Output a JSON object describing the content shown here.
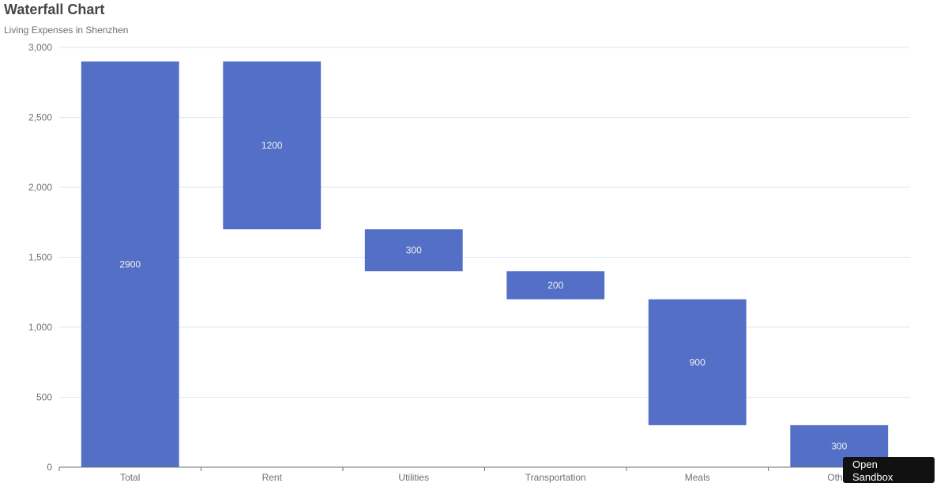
{
  "colors": {
    "bar": "#5470c6",
    "axis": "#6e7079",
    "grid": "#e0e6f1",
    "label": "#eeeeee"
  },
  "sandbox_button": {
    "label": "Open\nSandbox"
  },
  "chart_data": {
    "type": "bar",
    "subtype": "waterfall",
    "title": "Waterfall Chart",
    "subtitle": "Living Expenses in Shenzhen",
    "xlabel": "",
    "ylabel": "",
    "ylim": [
      0,
      3000
    ],
    "yticks": [
      0,
      500,
      1000,
      1500,
      2000,
      2500,
      3000
    ],
    "ytick_labels": [
      "0",
      "500",
      "1,000",
      "1,500",
      "2,000",
      "2,500",
      "3,000"
    ],
    "grid": true,
    "legend": "none",
    "categories": [
      "Total",
      "Rent",
      "Utilities",
      "Transportation",
      "Meals",
      "Other"
    ],
    "values": [
      2900,
      1200,
      300,
      200,
      900,
      300
    ],
    "bases": [
      0,
      1700,
      1400,
      1200,
      300,
      0
    ],
    "data_labels": [
      "2900",
      "1200",
      "300",
      "200",
      "900",
      "300"
    ]
  }
}
